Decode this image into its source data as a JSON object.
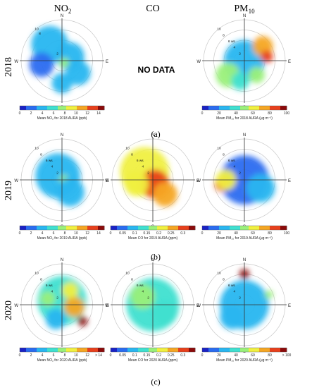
{
  "columns": [
    {
      "label": "NO",
      "sub": "2"
    },
    {
      "label": "CO",
      "sub": ""
    },
    {
      "label": "PM",
      "sub": "10"
    }
  ],
  "rows": [
    {
      "year": "2018",
      "caption": "(a)"
    },
    {
      "year": "2019",
      "caption": "(b)"
    },
    {
      "year": "2020",
      "caption": "(c)"
    }
  ],
  "no_data": "NO DATA",
  "palette": [
    "#1a22c4",
    "#2a6cf0",
    "#29b6f0",
    "#3fe0d0",
    "#9af07a",
    "#f0f040",
    "#f5a623",
    "#e8401c",
    "#8b0a0a"
  ],
  "chart_data": [
    {
      "type": "polar-heatmap",
      "row": "2018",
      "column": "NO2",
      "compass": [
        "N",
        "E",
        "S",
        "W"
      ],
      "rings": [
        "10",
        "8",
        "2"
      ],
      "colorbar": {
        "ticks": [
          "0",
          "2",
          "4",
          "6",
          "8",
          "10",
          "12",
          "14"
        ],
        "range": [
          0,
          15
        ]
      },
      "xlabel": "Mean NO₂ for 2018 AURA (ppb)",
      "blobs": [
        [
          -0.3,
          -0.4,
          0.45,
          4
        ],
        [
          0.2,
          -0.1,
          0.35,
          3
        ],
        [
          0.05,
          0.05,
          0.12,
          7
        ],
        [
          -0.5,
          0.1,
          0.3,
          2
        ],
        [
          0.4,
          0.3,
          0.3,
          3
        ],
        [
          0.0,
          0.55,
          0.25,
          3
        ]
      ]
    },
    {
      "type": "empty",
      "row": "2018",
      "column": "CO",
      "label": "NO DATA"
    },
    {
      "type": "polar-heatmap",
      "row": "2018",
      "column": "PM10",
      "compass": [
        "N",
        "E",
        "S",
        "W"
      ],
      "rings": [
        "10",
        "8",
        "6 ws",
        "4",
        "2"
      ],
      "colorbar": {
        "ticks": [
          "0",
          "20",
          "40",
          "60",
          "80",
          "100"
        ],
        "range": [
          0,
          100
        ]
      },
      "xlabel": "Mean PM₁₀ for 2018 AURA (μg m⁻³)",
      "blobs": [
        [
          0.0,
          0.0,
          0.5,
          30
        ],
        [
          0.45,
          -0.35,
          0.25,
          78
        ],
        [
          0.55,
          -0.1,
          0.15,
          92
        ],
        [
          -0.4,
          0.35,
          0.3,
          48
        ],
        [
          -0.1,
          0.5,
          0.22,
          40
        ],
        [
          0.3,
          0.35,
          0.2,
          55
        ]
      ]
    },
    {
      "type": "polar-heatmap",
      "row": "2019",
      "column": "NO2",
      "compass": [
        "N",
        "E",
        "S",
        "W"
      ],
      "rings": [
        "10",
        "8",
        "6 ws",
        "4",
        "2"
      ],
      "colorbar": {
        "ticks": [
          "0",
          "2",
          "4",
          "6",
          "8",
          "10",
          "12",
          "14"
        ],
        "range": [
          0,
          15
        ]
      },
      "xlabel": "Mean NO₂ for 2019 AURA (ppb)",
      "blobs": [
        [
          -0.1,
          -0.1,
          0.55,
          4
        ],
        [
          0.05,
          0.0,
          0.12,
          7
        ],
        [
          0.2,
          0.3,
          0.35,
          3
        ]
      ]
    },
    {
      "type": "polar-heatmap",
      "row": "2019",
      "column": "CO",
      "compass": [
        "N",
        "E",
        "S",
        "W"
      ],
      "rings": [
        "10",
        "8",
        "6 ws",
        "4",
        "2"
      ],
      "colorbar": {
        "ticks": [
          "0",
          "0.05",
          "0.1",
          "0.15",
          "0.2",
          "0.25",
          "0.3"
        ],
        "range": [
          0,
          0.35
        ]
      },
      "xlabel": "Mean CO for 2019 AURA (ppm)",
      "blobs": [
        [
          -0.2,
          -0.2,
          0.6,
          0.23
        ],
        [
          0.05,
          0.1,
          0.35,
          0.3
        ],
        [
          0.3,
          0.35,
          0.3,
          0.25
        ],
        [
          -0.4,
          0.1,
          0.3,
          0.2
        ]
      ]
    },
    {
      "type": "polar-heatmap",
      "row": "2019",
      "column": "PM10",
      "compass": [
        "N",
        "E",
        "S",
        "W"
      ],
      "rings": [
        "10",
        "8",
        "6 ws",
        "4",
        "2"
      ],
      "colorbar": {
        "ticks": [
          "0",
          "20",
          "40",
          "60",
          "80",
          "100"
        ],
        "range": [
          0,
          100
        ]
      },
      "xlabel": "Mean PM₁₀ for 2019 AURA (μg m⁻³)",
      "blobs": [
        [
          0.0,
          0.0,
          0.6,
          18
        ],
        [
          -0.55,
          0.1,
          0.18,
          85
        ],
        [
          -0.45,
          0.0,
          0.25,
          60
        ],
        [
          0.4,
          0.2,
          0.35,
          20
        ]
      ]
    },
    {
      "type": "polar-heatmap",
      "row": "2020",
      "column": "NO2",
      "compass": [
        "N",
        "E",
        "S",
        "W"
      ],
      "rings": [
        "10",
        "8",
        "6 ws",
        "4",
        "2"
      ],
      "colorbar": {
        "ticks": [
          "0",
          "2",
          "4",
          "6",
          "8",
          "10",
          "12",
          "> 14"
        ],
        "range": [
          0,
          15
        ]
      },
      "xlabel": "Mean NO₂ for 2020 AURA (ppb)",
      "blobs": [
        [
          0.0,
          -0.1,
          0.6,
          5
        ],
        [
          0.3,
          0.05,
          0.25,
          12
        ],
        [
          0.5,
          0.4,
          0.12,
          15
        ],
        [
          -0.35,
          -0.15,
          0.18,
          8
        ],
        [
          0.2,
          -0.35,
          0.2,
          9
        ],
        [
          -0.15,
          0.35,
          0.25,
          4
        ]
      ]
    },
    {
      "type": "polar-heatmap",
      "row": "2020",
      "column": "CO",
      "compass": [
        "N",
        "E",
        "S",
        "W"
      ],
      "rings": [
        "10",
        "8",
        "6 ws",
        "4",
        "2"
      ],
      "colorbar": {
        "ticks": [
          "0",
          "0.05",
          "0.1",
          "0.15",
          "0.2",
          "0.25",
          "0.3"
        ],
        "range": [
          0,
          0.35
        ]
      },
      "xlabel": "Mean CO for 2020 AURA (ppm)",
      "blobs": [
        [
          0.0,
          0.0,
          0.65,
          0.14
        ],
        [
          -0.25,
          -0.2,
          0.3,
          0.17
        ],
        [
          0.3,
          0.2,
          0.3,
          0.12
        ]
      ]
    },
    {
      "type": "polar-heatmap",
      "row": "2020",
      "column": "PM10",
      "compass": [
        "N",
        "E",
        "S",
        "W"
      ],
      "rings": [
        "10",
        "8",
        "6 ws",
        "4",
        "2"
      ],
      "colorbar": {
        "ticks": [
          "0",
          "20",
          "40",
          "60",
          "80",
          "> 100"
        ],
        "range": [
          0,
          100
        ]
      },
      "xlabel": "Mean PM₁₀ for 2020 AURA (μg m⁻³)",
      "blobs": [
        [
          0.0,
          0.0,
          0.6,
          28
        ],
        [
          0.0,
          -0.75,
          0.12,
          95
        ],
        [
          0.6,
          -0.25,
          0.1,
          55
        ],
        [
          -0.3,
          0.3,
          0.3,
          24
        ]
      ]
    }
  ]
}
